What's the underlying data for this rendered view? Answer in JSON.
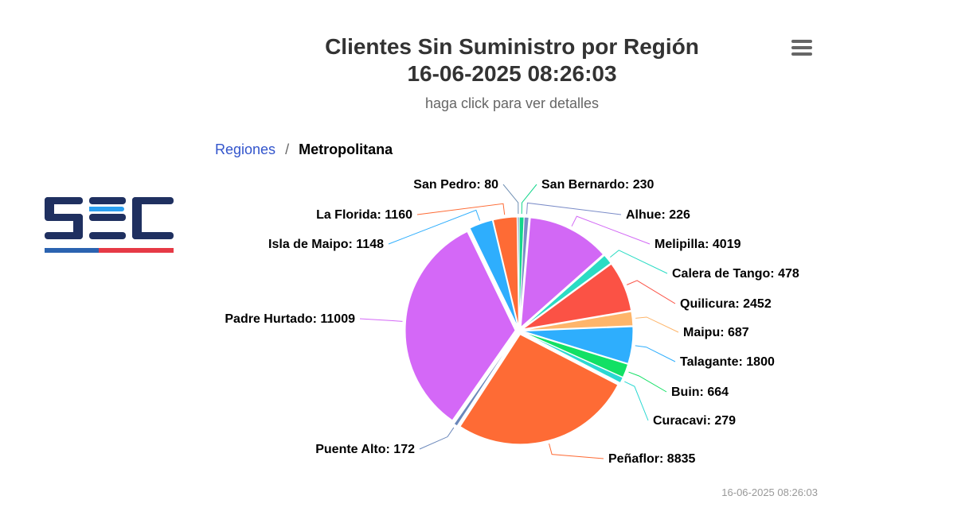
{
  "header": {
    "title_line1": "Clientes Sin Suministro por Región",
    "title_line2": "16-06-2025 08:26:03",
    "subtitle": "haga click para ver detalles"
  },
  "breadcrumb": {
    "root": "Regiones",
    "separator": "/",
    "current": "Metropolitana"
  },
  "logo": {
    "text": "SEC",
    "colors": {
      "letters": "#1f3060",
      "stripe_left": "#2b63b0",
      "stripe_right": "#e63a46"
    }
  },
  "menu": {
    "icon": "hamburger-menu-icon"
  },
  "footer": {
    "timestamp": "16-06-2025 08:26:03"
  },
  "chart_data": {
    "type": "pie",
    "slices": [
      {
        "name": "San Bernardo",
        "value": 230,
        "color": "#13d68c"
      },
      {
        "name": "Alhue",
        "value": 226,
        "color": "#7b8cc8"
      },
      {
        "name": "Melipilla",
        "value": 4019,
        "color": "#d268f5"
      },
      {
        "name": "Calera de Tango",
        "value": 478,
        "color": "#2bdcc4"
      },
      {
        "name": "Quilicura",
        "value": 2452,
        "color": "#fb5245"
      },
      {
        "name": "Maipu",
        "value": 687,
        "color": "#feb56a"
      },
      {
        "name": "Talagante",
        "value": 1800,
        "color": "#2eaefd"
      },
      {
        "name": "Buin",
        "value": 664,
        "color": "#12e064"
      },
      {
        "name": "Curacavi",
        "value": 279,
        "color": "#2ad8d2"
      },
      {
        "name": "Peñaflor",
        "value": 8835,
        "color": "#fe6b35"
      },
      {
        "name": "Puente Alto",
        "value": 172,
        "color": "#6b88bb"
      },
      {
        "name": "Padre Hurtado",
        "value": 11009,
        "color": "#d468f7"
      },
      {
        "name": "Isla de Maipo",
        "value": 1148,
        "color": "#2eaefd"
      },
      {
        "name": "La Florida",
        "value": 1160,
        "color": "#fe6b35"
      },
      {
        "name": "San Pedro",
        "value": 80,
        "color": "#6f8fb3"
      }
    ],
    "start_angle_deg": 0,
    "data_label_format": "{name}: {value}"
  }
}
